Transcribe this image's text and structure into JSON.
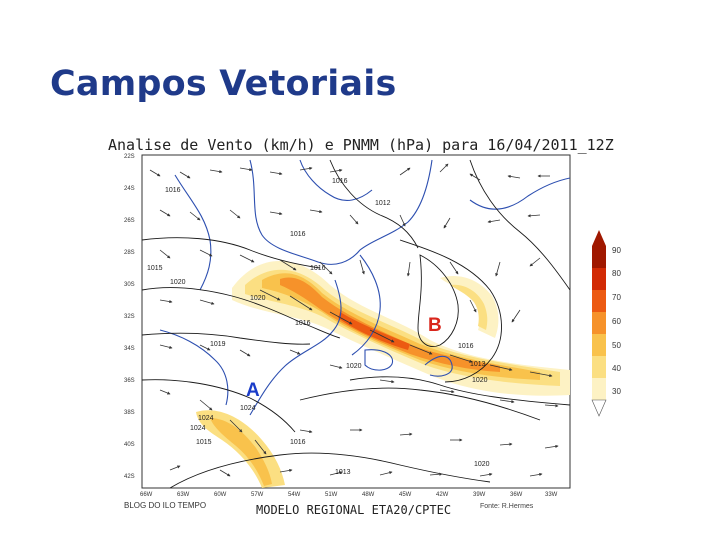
{
  "slide": {
    "title": "Campos Vetoriais"
  },
  "map": {
    "title": "Analise de Vento (km/h) e PNMM (hPa) para 16/04/2011_12Z",
    "model": "MODELO REGIONAL ETA20/CPTEC",
    "footer_left": "BLOG DO ILO TEMPO",
    "footer_right": "Fonte: R.Hermes",
    "lat_labels": [
      "22S",
      "24S",
      "26S",
      "28S",
      "30S",
      "32S",
      "34S",
      "36S",
      "38S",
      "40S",
      "42S"
    ],
    "lon_labels": [
      "66W",
      "63W",
      "60W",
      "57W",
      "54W",
      "51W",
      "48W",
      "45W",
      "42W",
      "39W",
      "36W",
      "33W"
    ],
    "colorbar": [
      {
        "value": "90",
        "color": "#a01800"
      },
      {
        "value": "80",
        "color": "#d22a05"
      },
      {
        "value": "70",
        "color": "#ec5a12"
      },
      {
        "value": "60",
        "color": "#f6922a"
      },
      {
        "value": "50",
        "color": "#f9c24c"
      },
      {
        "value": "40",
        "color": "#fbdf82"
      },
      {
        "value": "30",
        "color": "#fdf2c4"
      }
    ],
    "pressure_labels": [
      "1016",
      "1012",
      "1016",
      "1016",
      "1015",
      "1016",
      "1020",
      "1020",
      "1016",
      "1019",
      "1020",
      "1013",
      "1016",
      "1020",
      "1024",
      "1024",
      "1024",
      "1015",
      "1016",
      "1013",
      "1020",
      "1016",
      "1020",
      "1022",
      "1016",
      "1020",
      "1022"
    ],
    "markers": {
      "high": {
        "label": "A",
        "color": "#1a3cc9"
      },
      "low": {
        "label": "B",
        "color": "#d9261c"
      }
    }
  }
}
